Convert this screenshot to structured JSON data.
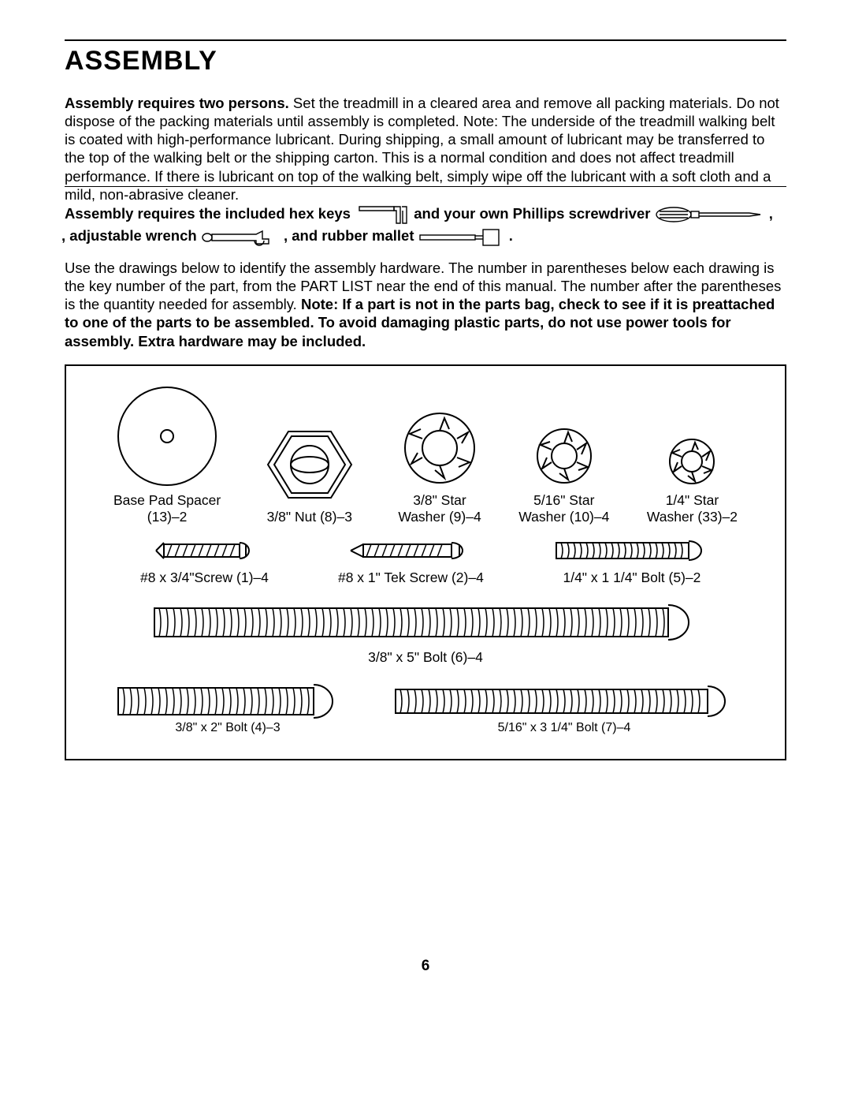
{
  "title": "ASSEMBLY",
  "para1_bold": "Assembly requires two persons.",
  "para1_rest": " Set the treadmill in a cleared area and remove all packing materials. Do not dispose of the packing materials until assembly is completed. Note: The underside of the treadmill walking belt is coated with high-performance lubricant. During shipping, a small amount of lubricant may be transferred to the top of the walking belt or the shipping carton. This is a normal condition and does not affect treadmill performance. If there is lubricant on top of the walking belt, simply wipe off the lubricant with a soft cloth and a mild, non-abrasive cleaner.",
  "tools": {
    "seg1": "Assembly requires the included hex keys",
    "seg2": "and your own Phillips screwdriver",
    "seg3": ", adjustable wrench",
    "seg4": ", and rubber mallet",
    "seg5": "."
  },
  "para2_plain": "Use the drawings below to identify the assembly hardware. The number in parentheses below each drawing is the key number of the part, from the PART LIST near the end of this manual. The number after the parentheses is the quantity needed for assembly. ",
  "para2_bold": "Note: If a part is not in the parts bag, check to see if it is preattached to one of the parts to be assembled. To avoid damaging plastic parts, do not use power tools for assembly. Extra hardware may be included.",
  "hardware": {
    "base_pad_spacer": {
      "line1": "Base Pad Spacer",
      "line2": "(13)–2"
    },
    "nut38": "3/8\" Nut (8)–3",
    "star38": {
      "line1": "3/8\" Star",
      "line2": "Washer (9)–4"
    },
    "star516": {
      "line1": "5/16\" Star",
      "line2": "Washer (10)–4"
    },
    "star14": {
      "line1": "1/4\" Star",
      "line2": "Washer (33)–2"
    },
    "screw8_34": "#8 x 3/4\"Screw (1)–4",
    "tek8_1": "#8 x 1\" Tek Screw (2)–4",
    "bolt14_114": "1/4\" x 1 1/4\" Bolt (5)–2",
    "bolt38_5": "3/8\" x 5\" Bolt (6)–4",
    "bolt38_2": "3/8\" x 2\" Bolt (4)–3",
    "bolt516_314": "5/16\" x 3 1/4\" Bolt (7)–4"
  },
  "page_number": "6",
  "colors": {
    "stroke": "#000000",
    "bg": "#ffffff"
  }
}
